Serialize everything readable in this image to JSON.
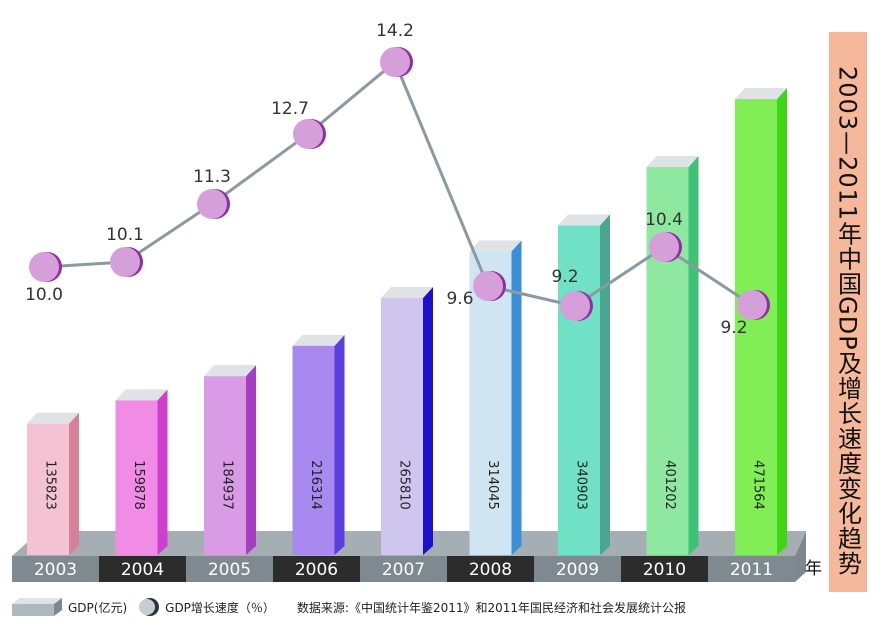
{
  "chart_data": {
    "type": "bar",
    "title": "2003—2011年中国GDP及增长速度变化趋势",
    "categories": [
      "2003",
      "2004",
      "2005",
      "2006",
      "2007",
      "2008",
      "2009",
      "2010",
      "2011"
    ],
    "series": [
      {
        "name": "GDP(亿元)",
        "type": "bar",
        "values": [
          135823,
          159878,
          184937,
          216314,
          265810,
          314045,
          340903,
          401202,
          471564
        ]
      },
      {
        "name": "GDP增长速度（％）",
        "type": "line",
        "values": [
          10.0,
          10.1,
          11.3,
          12.7,
          14.2,
          9.6,
          9.2,
          10.4,
          9.2
        ]
      }
    ],
    "xlabel": "年",
    "source": "数据来源:《中国统计年鉴2011》和2011年国民经济和社会发展统计公报",
    "colors": {
      "bars_front": [
        "#f3c3d3",
        "#f08ce6",
        "#d99ae6",
        "#a889ef",
        "#cfc6ef",
        "#cfe6f2",
        "#70e1c5",
        "#8ee8a0",
        "#80ee54"
      ],
      "bars_side": [
        "#d6809a",
        "#ce3fcf",
        "#a53fc0",
        "#5a3ee0",
        "#1d0fd0",
        "#3a8fd6",
        "#4aa592",
        "#3ec276",
        "#3fd616"
      ],
      "dot": "#d5a0da",
      "dot_shadow": "#8f2ea0",
      "line": "#8a9aa0",
      "title_bg": "#f5b89a",
      "year_dark": "#2c2c2c",
      "year_light": "#7f8a90"
    }
  }
}
